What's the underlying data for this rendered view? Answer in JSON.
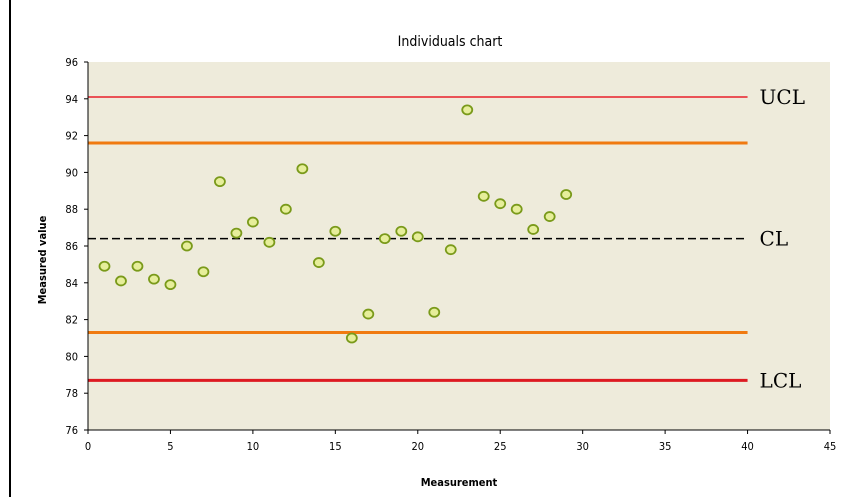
{
  "chart_data": {
    "type": "scatter",
    "title": "Individuals chart",
    "xlabel": "Measurement",
    "ylabel": "Measured value",
    "xlim": [
      0,
      45
    ],
    "ylim": [
      76,
      96
    ],
    "xticks": [
      0,
      5,
      10,
      15,
      20,
      25,
      30,
      35,
      40,
      45
    ],
    "yticks": [
      76,
      78,
      80,
      82,
      84,
      86,
      88,
      90,
      92,
      94,
      96
    ],
    "grid": false,
    "legend": "none",
    "series": [
      {
        "marker": "circle",
        "color": "#7a9a1a",
        "fill": "#e6ee9a",
        "x": [
          1,
          2,
          3,
          4,
          5,
          6,
          7,
          8,
          9,
          10,
          11,
          12,
          13,
          14,
          15,
          16,
          17,
          18,
          19,
          20,
          21,
          22,
          23,
          24,
          25,
          26,
          27,
          28,
          29
        ],
        "y": [
          84.9,
          84.1,
          84.9,
          84.2,
          83.9,
          86.0,
          84.6,
          89.5,
          86.7,
          87.3,
          86.2,
          88.0,
          90.2,
          85.1,
          86.8,
          81.0,
          82.3,
          86.4,
          86.8,
          86.5,
          82.4,
          85.8,
          93.4,
          88.7,
          88.3,
          88.0,
          86.9,
          87.6,
          88.8
        ]
      }
    ],
    "reference_lines": [
      {
        "label": "UCL",
        "y": 94.1,
        "x_range": [
          0,
          40
        ],
        "color": "#e8202a",
        "style": "solid",
        "width": 1.5
      },
      {
        "label": "",
        "y": 91.6,
        "x_range": [
          0,
          40
        ],
        "color": "#f07a10",
        "style": "solid",
        "width": 3
      },
      {
        "label": "CL",
        "y": 86.4,
        "x_range": [
          0,
          40
        ],
        "color": "#000000",
        "style": "dashed",
        "width": 1.5
      },
      {
        "label": "",
        "y": 81.3,
        "x_range": [
          0,
          40
        ],
        "color": "#f07a10",
        "style": "solid",
        "width": 3
      },
      {
        "label": "LCL",
        "y": 78.7,
        "x_range": [
          0,
          40
        ],
        "color": "#dd1a22",
        "style": "solid",
        "width": 3
      }
    ],
    "colors": {
      "plot_background": "#eeebdb",
      "axis": "#000000"
    }
  }
}
